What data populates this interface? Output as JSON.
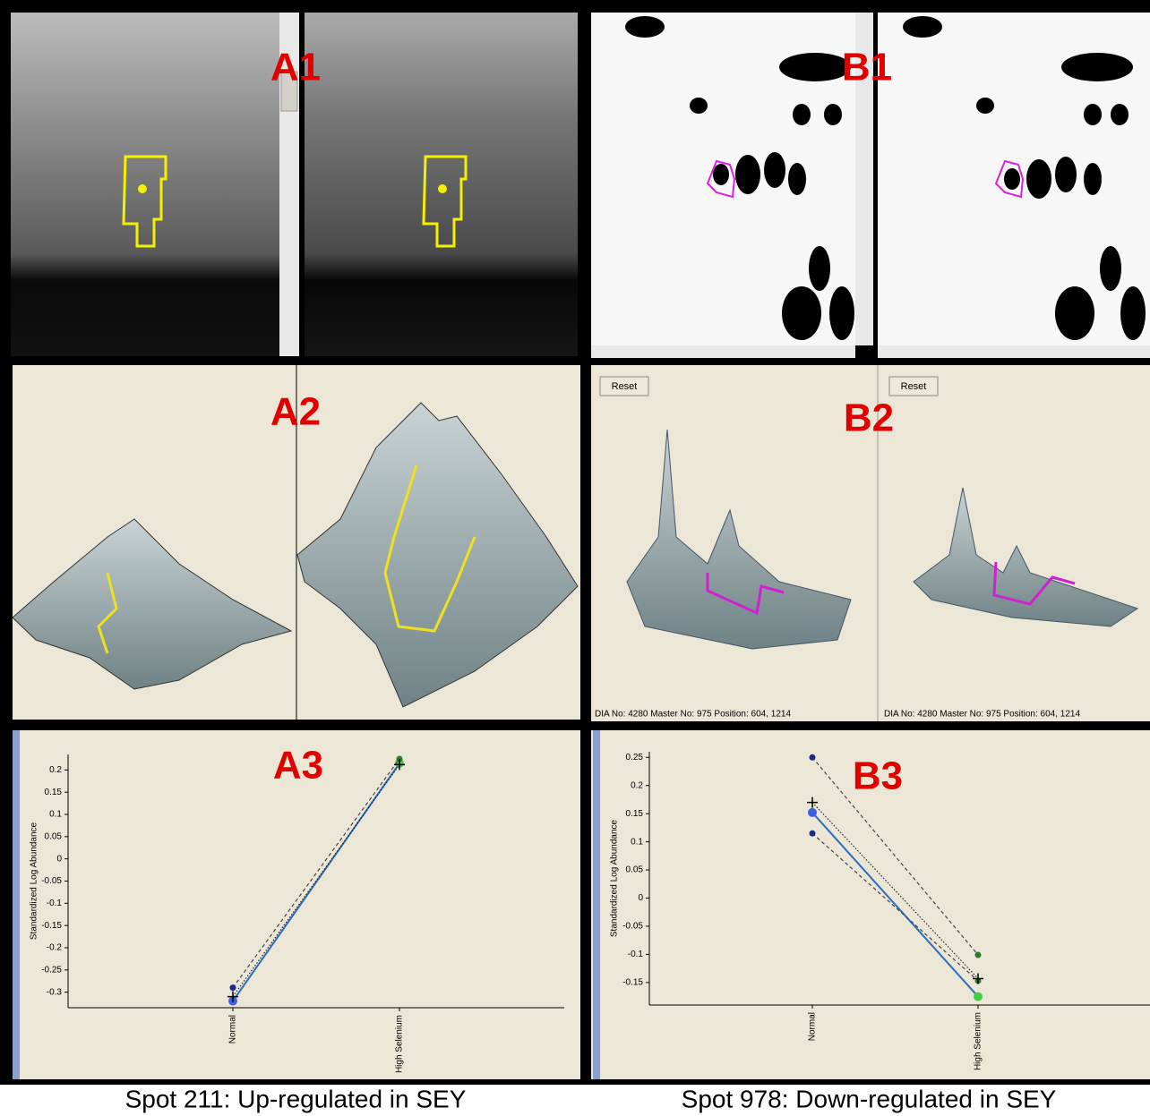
{
  "panels": [
    {
      "label": "A1"
    },
    {
      "label": "B1"
    },
    {
      "label": "A2"
    },
    {
      "label": "B2",
      "reset": [
        "Reset",
        "Reset"
      ],
      "status": [
        "DIA No: 4280  Master No: 975  Position: 604, 1214",
        "DIA No: 4280  Master No: 975  Position: 604, 1214"
      ]
    },
    {
      "label": "A3",
      "chart": {
        "type": "line",
        "ylabel": "Standardized Log Abundance",
        "categories": [
          "Normal",
          "High Selenium"
        ],
        "ylim": [
          -0.335,
          0.235
        ],
        "yticks": [
          0.2,
          0.15,
          0.1,
          0.05,
          0,
          -0.05,
          -0.1,
          -0.15,
          -0.2,
          -0.25,
          -0.3
        ],
        "series": [
          {
            "color": "#2a6ebd",
            "style": "solid",
            "marker": "dot",
            "marker_colors": [
              "#3d5fe0",
              "#3fcf3f"
            ],
            "values": [
              -0.32,
              0.215
            ]
          },
          {
            "color": "#444444",
            "style": "dashed",
            "marker": "dot",
            "marker_colors": [
              "#1a2a8a",
              "#2a7a2a"
            ],
            "values": [
              -0.29,
              0.225
            ]
          },
          {
            "color": "#222222",
            "style": "dotted",
            "marker": "plus",
            "marker_colors": [
              "#000000",
              "#000000"
            ],
            "values": [
              -0.31,
              0.212
            ]
          }
        ]
      }
    },
    {
      "label": "B3",
      "chart": {
        "type": "line",
        "ylabel": "Standardized Log Abundance",
        "categories": [
          "Normal",
          "High Selenium"
        ],
        "ylim": [
          -0.19,
          0.26
        ],
        "yticks": [
          0.25,
          0.2,
          0.15,
          0.1,
          0.05,
          0,
          -0.05,
          -0.1,
          -0.15
        ],
        "series": [
          {
            "color": "#2a6ebd",
            "style": "solid",
            "marker": "dot",
            "marker_colors": [
              "#3d5fe0",
              "#3fcf3f"
            ],
            "values": [
              0.152,
              -0.175
            ]
          },
          {
            "color": "#444444",
            "style": "dashed",
            "marker": "dot",
            "marker_colors": [
              "#1a2a8a",
              "#2a7a2a"
            ],
            "values": [
              0.25,
              -0.101
            ]
          },
          {
            "color": "#444444",
            "style": "dashed",
            "marker": "dot",
            "marker_colors": [
              "#1a2a8a",
              "#2a7a2a"
            ],
            "values": [
              0.115,
              -0.147
            ]
          },
          {
            "color": "#222222",
            "style": "dotted",
            "marker": "plus",
            "marker_colors": [
              "#000000",
              "#000000"
            ],
            "values": [
              0.17,
              -0.143
            ]
          }
        ]
      }
    }
  ],
  "captions": [
    "Spot 211: Up-regulated in SEY",
    "Spot 978: Down-regulated in SEY"
  ]
}
